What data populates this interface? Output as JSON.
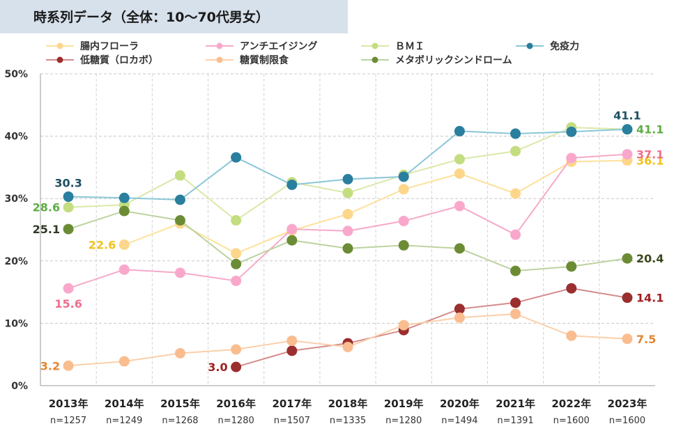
{
  "title": "時系列データ（全体：10〜70代男女）",
  "chart_data": {
    "type": "line",
    "categories": [
      "2013年",
      "2014年",
      "2015年",
      "2016年",
      "2017年",
      "2018年",
      "2019年",
      "2020年",
      "2021年",
      "2022年",
      "2023年"
    ],
    "sample_sizes": [
      "n=1257",
      "n=1249",
      "n=1268",
      "n=1280",
      "n=1507",
      "n=1335",
      "n=1280",
      "n=1494",
      "n=1391",
      "n=1600",
      "n=1600"
    ],
    "y_tick_labels": [
      "0%",
      "10%",
      "20%",
      "30%",
      "40%",
      "50%"
    ],
    "ylim": [
      0,
      50
    ],
    "grid": true,
    "legend_position": "top",
    "series": [
      {
        "name": "腸内フローラ",
        "color": "#fce19a",
        "marker": "#fcd68a",
        "values": [
          null,
          22.6,
          26.0,
          21.2,
          24.9,
          27.5,
          31.5,
          34.0,
          30.8,
          35.9,
          36.1
        ],
        "labels": [
          {
            "index": 1,
            "text": "22.6",
            "color": "#f2c218",
            "side": "left"
          },
          {
            "index": 10,
            "text": "36.1",
            "color": "#f2c218",
            "side": "right"
          }
        ]
      },
      {
        "name": "アンチエイジング",
        "color": "#f7a9c9",
        "marker": "#f9a8cc",
        "values": [
          15.6,
          18.6,
          18.1,
          16.8,
          25.1,
          24.8,
          26.4,
          28.8,
          24.2,
          36.5,
          37.1
        ],
        "labels": [
          {
            "index": 0,
            "text": "15.6",
            "color": "#f06e8c",
            "side": "below"
          },
          {
            "index": 10,
            "text": "37.1",
            "color": "#f06e8c",
            "side": "right"
          }
        ]
      },
      {
        "name": "ＢＭＩ",
        "color": "#d9e9a8",
        "marker": "#c3dd80",
        "values": [
          28.6,
          29.0,
          33.7,
          26.5,
          32.6,
          30.9,
          33.8,
          36.3,
          37.6,
          41.4,
          41.1
        ],
        "labels": [
          {
            "index": 0,
            "text": "28.6",
            "color": "#5fac45",
            "side": "left"
          },
          {
            "index": 10,
            "text": "41.1",
            "color": "#5fac45",
            "side": "right"
          }
        ]
      },
      {
        "name": "免疫力",
        "color": "#8ac6d8",
        "marker": "#2a7f9e",
        "values": [
          30.3,
          30.1,
          29.8,
          36.6,
          32.2,
          33.1,
          33.5,
          40.8,
          40.4,
          40.7,
          41.1
        ],
        "labels": [
          {
            "index": 0,
            "text": "30.3",
            "color": "#1e4f63",
            "side": "above"
          },
          {
            "index": 10,
            "text": "41.1",
            "color": "#1e4f63",
            "side": "above"
          }
        ]
      },
      {
        "name": "低糖質（ロカボ）",
        "color": "#d48a8a",
        "marker": "#9b2e2e",
        "values": [
          null,
          null,
          null,
          3.0,
          5.6,
          6.8,
          8.9,
          12.3,
          13.3,
          15.6,
          14.1
        ],
        "labels": [
          {
            "index": 3,
            "text": "3.0",
            "color": "#a01e1e",
            "side": "left"
          },
          {
            "index": 10,
            "text": "14.1",
            "color": "#a01e1e",
            "side": "right"
          }
        ]
      },
      {
        "name": "糖質制限食",
        "color": "#fbcfa9",
        "marker": "#fabd8f",
        "values": [
          3.2,
          3.9,
          5.2,
          5.8,
          7.2,
          6.2,
          9.7,
          10.9,
          11.5,
          8.0,
          7.5
        ],
        "labels": [
          {
            "index": 0,
            "text": "3.2",
            "color": "#e4852f",
            "side": "left"
          },
          {
            "index": 10,
            "text": "7.5",
            "color": "#e4852f",
            "side": "right"
          }
        ]
      },
      {
        "name": "メタボリックシンドローム",
        "color": "#bcd3a0",
        "marker": "#6b8c35",
        "values": [
          25.1,
          28.0,
          26.5,
          19.5,
          23.3,
          22.0,
          22.5,
          22.0,
          18.4,
          19.1,
          20.4
        ],
        "labels": [
          {
            "index": 0,
            "text": "25.1",
            "color": "#2f3b24",
            "side": "left"
          },
          {
            "index": 10,
            "text": "20.4",
            "color": "#3b4a1f",
            "side": "right"
          }
        ]
      }
    ]
  }
}
